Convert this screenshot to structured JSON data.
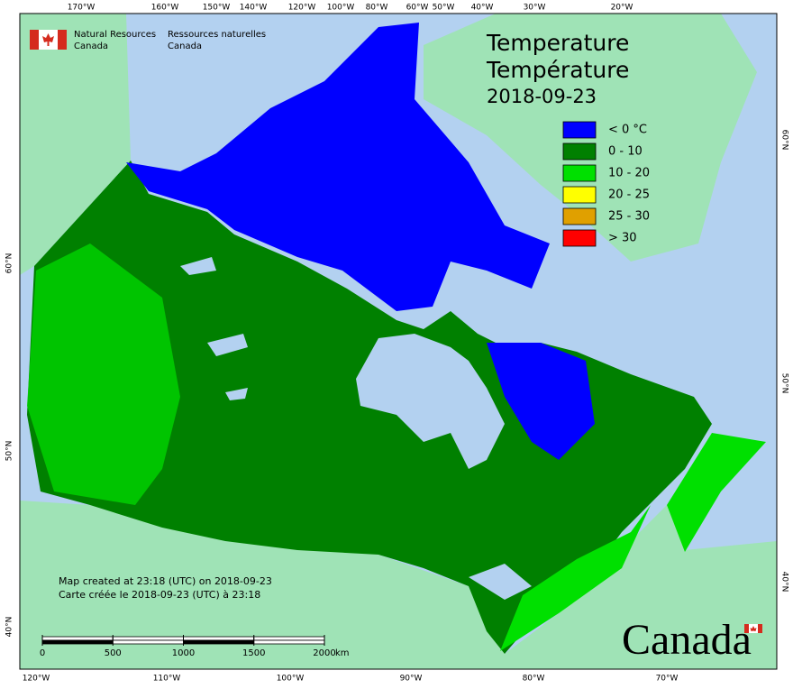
{
  "org": {
    "en_line1": "Natural Resources",
    "en_line2": "Canada",
    "fr_line1": "Ressources naturelles",
    "fr_line2": "Canada"
  },
  "title": {
    "en": "Temperature",
    "fr": "Température",
    "date": "2018-09-23"
  },
  "legend": [
    {
      "label": "< 0 °C",
      "color": "#0000ff"
    },
    {
      "label": "0 - 10",
      "color": "#008000"
    },
    {
      "label": "10 - 20",
      "color": "#00e000"
    },
    {
      "label": "20 - 25",
      "color": "#ffff00"
    },
    {
      "label": "25 - 30",
      "color": "#e0a000"
    },
    {
      "label": "> 30",
      "color": "#ff0000"
    }
  ],
  "top_labels": [
    "170°W",
    "160°W",
    "150°W",
    "140°W",
    "120°W",
    "100°W",
    "80°W",
    "60°W",
    "50°W",
    "40°W",
    "30°W",
    "20°W"
  ],
  "bottom_labels": [
    "120°W",
    "110°W",
    "100°W",
    "90°W",
    "80°W",
    "70°W"
  ],
  "left_labels": [
    "60°N",
    "50°N",
    "40°N"
  ],
  "right_labels": [
    "60°N",
    "50°N",
    "40°N"
  ],
  "credit": [
    "Map created at 23:18 (UTC) on 2018-09-23",
    "Carte créée le 2018-09-23 (UTC) à 23:18"
  ],
  "scale": {
    "ticks": [
      0,
      500,
      1000,
      1500,
      2000
    ],
    "unit": "km"
  },
  "wordmark": "Canada"
}
